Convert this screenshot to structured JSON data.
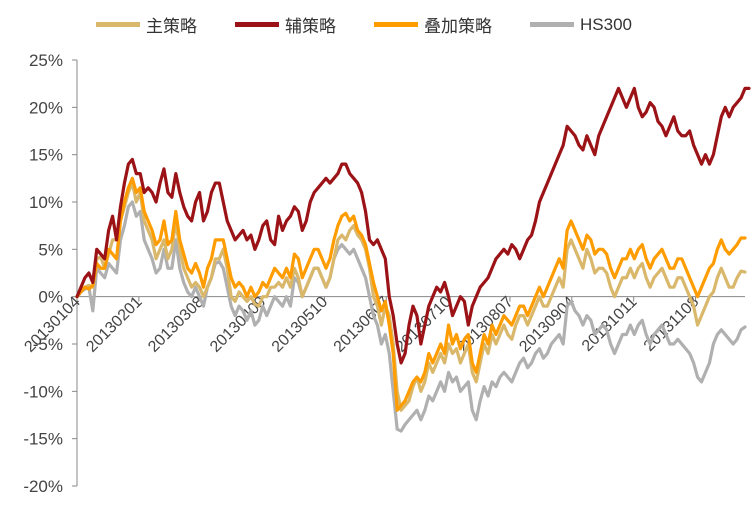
{
  "chart_data": {
    "type": "line",
    "ylim": [
      -0.2,
      0.25
    ],
    "y_ticks": [
      "25%",
      "20%",
      "15%",
      "10%",
      "5%",
      "0%",
      "-5%",
      "-10%",
      "-15%",
      "-20%"
    ],
    "x_tick_labels": [
      "20130104",
      "20130201",
      "20130308",
      "20130409",
      "20130510",
      "20130607",
      "20130710",
      "20130807",
      "20130904",
      "20131011",
      "20131108"
    ],
    "legend_position": "top",
    "grid": false,
    "series": [
      {
        "name": "主策略",
        "color": "#D9B86C",
        "values": [
          0.0,
          0.008,
          0.01,
          0.012,
          0.01,
          0.04,
          0.042,
          0.03,
          0.045,
          0.06,
          0.06,
          0.08,
          0.095,
          0.11,
          0.12,
          0.1,
          0.11,
          0.08,
          0.07,
          0.06,
          0.04,
          0.05,
          0.06,
          0.04,
          0.05,
          0.08,
          0.05,
          0.03,
          0.02,
          0.01,
          0.015,
          0.01,
          0.0,
          0.01,
          0.02,
          0.04,
          0.04,
          0.05,
          0.03,
          0.0,
          -0.005,
          0.005,
          0.0,
          -0.005,
          0.0,
          -0.008,
          -0.01,
          0.0,
          0.0,
          0.01,
          0.01,
          0.015,
          0.01,
          0.02,
          0.01,
          0.03,
          0.02,
          0.0,
          0.01,
          0.02,
          0.03,
          0.03,
          0.02,
          0.01,
          0.02,
          0.04,
          0.06,
          0.065,
          0.06,
          0.07,
          0.075,
          0.065,
          0.06,
          0.05,
          0.03,
          0.0,
          -0.01,
          -0.03,
          -0.01,
          -0.02,
          -0.05,
          -0.1,
          -0.12,
          -0.115,
          -0.11,
          -0.095,
          -0.085,
          -0.1,
          -0.09,
          -0.07,
          -0.08,
          -0.07,
          -0.06,
          -0.07,
          -0.05,
          -0.06,
          -0.055,
          -0.07,
          -0.06,
          -0.05,
          -0.08,
          -0.09,
          -0.07,
          -0.05,
          -0.06,
          -0.04,
          -0.05,
          -0.04,
          -0.03,
          -0.04,
          -0.045,
          -0.03,
          -0.02,
          -0.02,
          -0.03,
          -0.02,
          -0.01,
          0.0,
          -0.01,
          -0.01,
          0.0,
          0.01,
          0.02,
          0.01,
          0.05,
          0.06,
          0.05,
          0.04,
          0.03,
          0.05,
          0.04,
          0.025,
          0.03,
          0.03,
          0.025,
          0.01,
          0.0,
          0.01,
          0.02,
          0.02,
          0.03,
          0.02,
          0.03,
          0.035,
          0.02,
          0.01,
          0.02,
          0.025,
          0.03,
          0.02,
          0.01,
          0.01,
          0.02,
          0.02,
          0.01,
          0.0,
          -0.01,
          -0.03,
          -0.02,
          -0.01,
          0.0,
          0.005,
          0.02,
          0.03,
          0.02,
          0.01,
          0.01,
          0.02,
          0.027,
          0.026
        ]
      },
      {
        "name": "辅策略",
        "color": "#9B1316",
        "values": [
          0.0,
          0.01,
          0.02,
          0.025,
          0.015,
          0.05,
          0.045,
          0.04,
          0.07,
          0.085,
          0.06,
          0.095,
          0.12,
          0.14,
          0.145,
          0.13,
          0.13,
          0.11,
          0.115,
          0.11,
          0.1,
          0.12,
          0.135,
          0.11,
          0.105,
          0.13,
          0.11,
          0.095,
          0.085,
          0.08,
          0.1,
          0.11,
          0.08,
          0.09,
          0.11,
          0.12,
          0.12,
          0.1,
          0.08,
          0.07,
          0.06,
          0.065,
          0.07,
          0.06,
          0.065,
          0.05,
          0.06,
          0.075,
          0.08,
          0.06,
          0.055,
          0.085,
          0.07,
          0.08,
          0.085,
          0.095,
          0.09,
          0.07,
          0.08,
          0.1,
          0.11,
          0.115,
          0.12,
          0.125,
          0.12,
          0.125,
          0.13,
          0.14,
          0.14,
          0.13,
          0.125,
          0.12,
          0.11,
          0.09,
          0.06,
          0.055,
          0.06,
          0.05,
          0.04,
          0.0,
          -0.02,
          -0.05,
          -0.07,
          -0.06,
          -0.03,
          -0.01,
          -0.02,
          -0.05,
          -0.03,
          -0.01,
          0.0,
          0.01,
          0.005,
          0.015,
          0.0,
          -0.02,
          -0.01,
          0.0,
          -0.005,
          -0.03,
          -0.01,
          0.0,
          0.01,
          0.015,
          0.02,
          0.03,
          0.04,
          0.045,
          0.05,
          0.045,
          0.055,
          0.05,
          0.04,
          0.05,
          0.06,
          0.065,
          0.08,
          0.1,
          0.11,
          0.12,
          0.13,
          0.14,
          0.15,
          0.16,
          0.18,
          0.175,
          0.17,
          0.16,
          0.155,
          0.17,
          0.16,
          0.15,
          0.17,
          0.18,
          0.19,
          0.2,
          0.21,
          0.22,
          0.21,
          0.2,
          0.21,
          0.22,
          0.2,
          0.19,
          0.195,
          0.205,
          0.2,
          0.185,
          0.18,
          0.17,
          0.18,
          0.19,
          0.175,
          0.17,
          0.17,
          0.175,
          0.16,
          0.15,
          0.14,
          0.15,
          0.14,
          0.15,
          0.17,
          0.19,
          0.2,
          0.19,
          0.2,
          0.205,
          0.21,
          0.22,
          0.22
        ]
      },
      {
        "name": "叠加策略",
        "color": "#FF9C00",
        "values": [
          0.0,
          0.005,
          0.01,
          0.008,
          0.012,
          0.035,
          0.03,
          0.03,
          0.05,
          0.045,
          0.04,
          0.08,
          0.1,
          0.115,
          0.125,
          0.11,
          0.115,
          0.09,
          0.08,
          0.07,
          0.055,
          0.06,
          0.08,
          0.055,
          0.06,
          0.09,
          0.06,
          0.045,
          0.03,
          0.025,
          0.035,
          0.025,
          0.01,
          0.03,
          0.04,
          0.06,
          0.06,
          0.06,
          0.04,
          0.02,
          0.01,
          0.015,
          0.01,
          0.0,
          0.01,
          0.0,
          0.005,
          0.015,
          0.01,
          0.02,
          0.03,
          0.025,
          0.02,
          0.03,
          0.02,
          0.045,
          0.04,
          0.02,
          0.03,
          0.04,
          0.05,
          0.05,
          0.04,
          0.03,
          0.04,
          0.06,
          0.075,
          0.085,
          0.088,
          0.08,
          0.085,
          0.07,
          0.065,
          0.055,
          0.035,
          0.015,
          0.0,
          -0.015,
          -0.005,
          -0.03,
          -0.06,
          -0.12,
          -0.115,
          -0.11,
          -0.1,
          -0.09,
          -0.085,
          -0.09,
          -0.08,
          -0.06,
          -0.07,
          -0.06,
          -0.05,
          -0.06,
          -0.03,
          -0.05,
          -0.04,
          -0.055,
          -0.045,
          -0.04,
          -0.07,
          -0.08,
          -0.06,
          -0.04,
          -0.05,
          -0.03,
          -0.04,
          -0.03,
          -0.02,
          -0.025,
          -0.03,
          -0.02,
          -0.01,
          -0.01,
          -0.02,
          -0.01,
          0.0,
          0.01,
          0.0,
          0.01,
          0.02,
          0.03,
          0.04,
          0.03,
          0.07,
          0.08,
          0.07,
          0.06,
          0.05,
          0.065,
          0.06,
          0.045,
          0.05,
          0.05,
          0.045,
          0.03,
          0.02,
          0.03,
          0.04,
          0.04,
          0.05,
          0.04,
          0.05,
          0.055,
          0.04,
          0.03,
          0.04,
          0.045,
          0.05,
          0.04,
          0.03,
          0.03,
          0.04,
          0.04,
          0.03,
          0.02,
          0.01,
          0.0,
          0.01,
          0.02,
          0.03,
          0.035,
          0.05,
          0.06,
          0.05,
          0.045,
          0.05,
          0.055,
          0.062,
          0.062
        ]
      },
      {
        "name": "HS300",
        "color": "#B0B0B0",
        "values": [
          0.0,
          0.005,
          0.008,
          0.01,
          -0.015,
          0.03,
          0.025,
          0.02,
          0.035,
          0.03,
          0.025,
          0.06,
          0.075,
          0.095,
          0.1,
          0.085,
          0.09,
          0.06,
          0.05,
          0.04,
          0.025,
          0.03,
          0.05,
          0.03,
          0.03,
          0.06,
          0.03,
          0.015,
          0.005,
          0.0,
          0.01,
          0.0,
          -0.01,
          0.01,
          0.02,
          0.035,
          0.037,
          0.03,
          0.01,
          -0.01,
          -0.02,
          -0.01,
          -0.015,
          -0.025,
          -0.015,
          -0.03,
          -0.025,
          -0.01,
          -0.02,
          -0.01,
          0.0,
          -0.005,
          -0.01,
          0.0,
          -0.01,
          0.02,
          0.015,
          0.0,
          0.01,
          0.02,
          0.03,
          0.03,
          0.02,
          0.01,
          0.02,
          0.04,
          0.05,
          0.055,
          0.05,
          0.045,
          0.05,
          0.04,
          0.03,
          0.02,
          0.0,
          -0.02,
          -0.03,
          -0.05,
          -0.04,
          -0.06,
          -0.1,
          -0.14,
          -0.142,
          -0.135,
          -0.13,
          -0.125,
          -0.12,
          -0.13,
          -0.12,
          -0.105,
          -0.11,
          -0.1,
          -0.09,
          -0.1,
          -0.08,
          -0.09,
          -0.085,
          -0.1,
          -0.095,
          -0.09,
          -0.12,
          -0.13,
          -0.11,
          -0.095,
          -0.105,
          -0.09,
          -0.095,
          -0.085,
          -0.08,
          -0.085,
          -0.09,
          -0.08,
          -0.07,
          -0.065,
          -0.075,
          -0.07,
          -0.06,
          -0.055,
          -0.065,
          -0.06,
          -0.05,
          -0.045,
          -0.04,
          -0.05,
          -0.01,
          -0.005,
          -0.015,
          -0.02,
          -0.03,
          -0.02,
          -0.025,
          -0.04,
          -0.035,
          -0.03,
          -0.035,
          -0.05,
          -0.06,
          -0.05,
          -0.04,
          -0.04,
          -0.03,
          -0.04,
          -0.03,
          -0.025,
          -0.04,
          -0.05,
          -0.04,
          -0.035,
          -0.03,
          -0.04,
          -0.05,
          -0.05,
          -0.045,
          -0.05,
          -0.055,
          -0.06,
          -0.07,
          -0.085,
          -0.09,
          -0.08,
          -0.07,
          -0.05,
          -0.04,
          -0.035,
          -0.04,
          -0.045,
          -0.05,
          -0.045,
          -0.035,
          -0.032
        ]
      }
    ]
  }
}
